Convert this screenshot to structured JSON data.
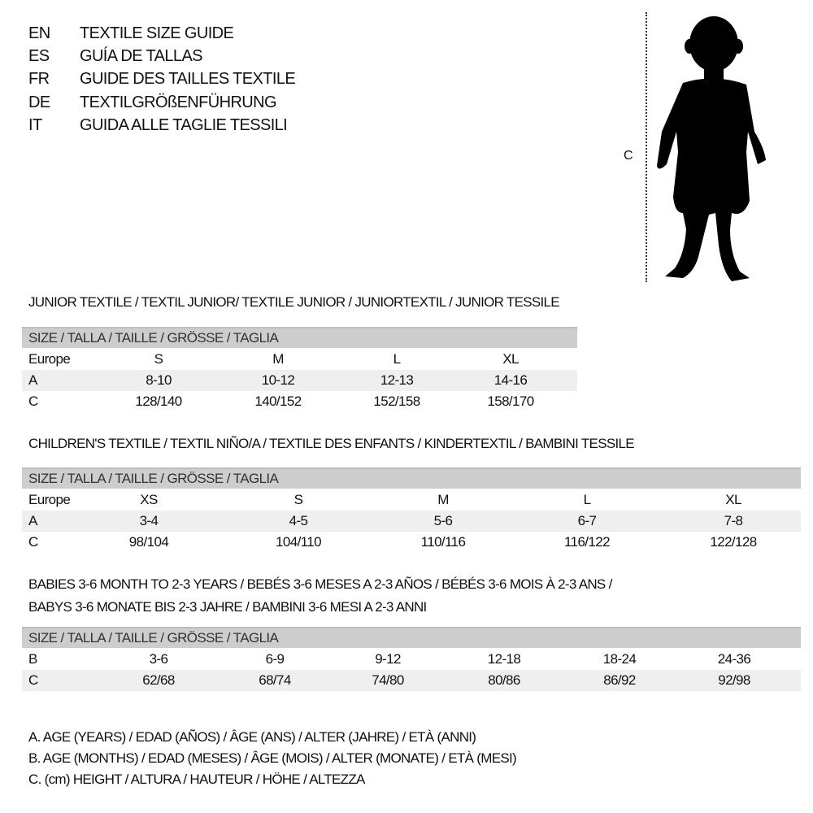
{
  "header": [
    {
      "code": "EN",
      "text": "TEXTILE SIZE GUIDE"
    },
    {
      "code": "ES",
      "text": "GUÍA DE TALLAS"
    },
    {
      "code": "FR",
      "text": "GUIDE DES TAILLES TEXTILE"
    },
    {
      "code": "DE",
      "text": "TEXTILGRÖßENFÜHRUNG"
    },
    {
      "code": "IT",
      "text": "GUIDA ALLE TAGLIE TESSILI"
    }
  ],
  "figure": {
    "label": "C",
    "icon": "child-silhouette-icon"
  },
  "size_header": "SIZE / TALLA / TAILLE / GRÖSSE / TAGLIA",
  "junior": {
    "title": "JUNIOR TEXTILE / TEXTIL JUNIOR/ TEXTILE JUNIOR / JUNIORTEXTIL / JUNIOR TESSILE",
    "rows": [
      {
        "label": "Europe",
        "cells": [
          "S",
          "M",
          "L",
          "XL"
        ]
      },
      {
        "label": "A",
        "cells": [
          "8-10",
          "10-12",
          "12-13",
          "14-16"
        ]
      },
      {
        "label": "C",
        "cells": [
          "128/140",
          "140/152",
          "152/158",
          "158/170"
        ]
      }
    ]
  },
  "children": {
    "title": "CHILDREN'S TEXTILE / TEXTIL NIÑO/A / TEXTILE DES ENFANTS / KINDERTEXTIL / BAMBINI TESSILE",
    "rows": [
      {
        "label": "Europe",
        "cells": [
          "XS",
          "S",
          "M",
          "L",
          "XL"
        ]
      },
      {
        "label": "A",
        "cells": [
          "3-4",
          "4-5",
          "5-6",
          "6-7",
          "7-8"
        ]
      },
      {
        "label": "C",
        "cells": [
          "98/104",
          "104/110",
          "110/116",
          "116/122",
          "122/128"
        ]
      }
    ]
  },
  "babies": {
    "title_line1": "BABIES 3-6 MONTH TO 2-3 YEARS / BEBÉS 3-6 MESES A 2-3 AÑOS / BÉBÉS 3-6 MOIS À 2-3 ANS /",
    "title_line2": "BABYS 3-6 MONATE BIS 2-3 JAHRE / BAMBINI 3-6 MESI A 2-3 ANNI",
    "rows": [
      {
        "label": "B",
        "cells": [
          "3-6",
          "6-9",
          "9-12",
          "12-18",
          "18-24",
          "24-36"
        ]
      },
      {
        "label": "C",
        "cells": [
          "62/68",
          "68/74",
          "74/80",
          "80/86",
          "86/92",
          "92/98"
        ]
      }
    ]
  },
  "legend": [
    "A. AGE (YEARS) / EDAD (AÑOS) / ÂGE (ANS) / ALTER (JAHRE) / ETÀ (ANNI)",
    "B. AGE (MONTHS) / EDAD (MESES) / ÂGE (MOIS) / ALTER (MONATE) / ETÀ (MESI)",
    "C. (cm) HEIGHT / ALTURA / HAUTEUR / HÖHE / ALTEZZA"
  ]
}
